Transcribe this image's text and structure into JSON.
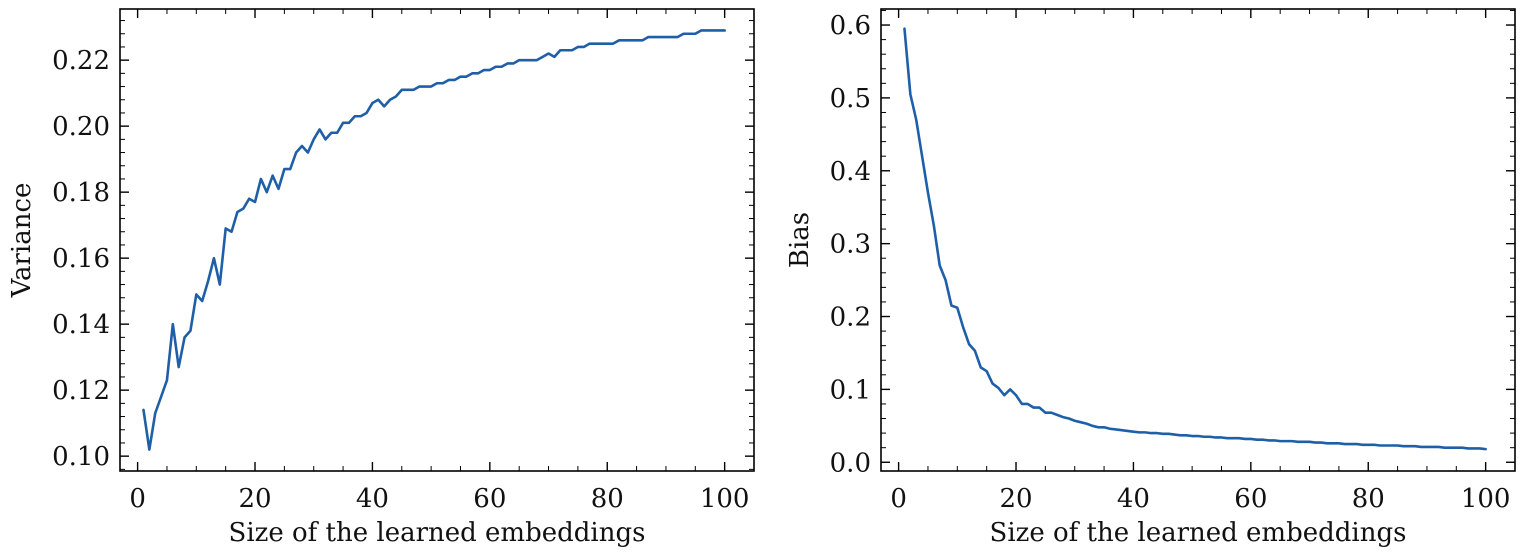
{
  "chart_data": [
    {
      "type": "line",
      "xlabel": "Size of the learned embeddings",
      "ylabel": "Variance",
      "xlim": [
        -3,
        105
      ],
      "ylim": [
        0.0955,
        0.2355
      ],
      "xticks": [
        0,
        20,
        40,
        60,
        80,
        100
      ],
      "xtick_labels": [
        "0",
        "20",
        "40",
        "60",
        "80",
        "100"
      ],
      "yticks": [
        0.1,
        0.12,
        0.14,
        0.16,
        0.18,
        0.2,
        0.22
      ],
      "ytick_labels": [
        "0.10",
        "0.12",
        "0.14",
        "0.16",
        "0.18",
        "0.20",
        "0.22"
      ],
      "grid": false,
      "color": "#1f5fa8",
      "x": [
        1,
        2,
        3,
        4,
        5,
        6,
        7,
        8,
        9,
        10,
        11,
        12,
        13,
        14,
        15,
        16,
        17,
        18,
        19,
        20,
        21,
        22,
        23,
        24,
        25,
        26,
        27,
        28,
        29,
        30,
        31,
        32,
        33,
        34,
        35,
        36,
        37,
        38,
        39,
        40,
        41,
        42,
        43,
        44,
        45,
        46,
        47,
        48,
        49,
        50,
        51,
        52,
        53,
        54,
        55,
        56,
        57,
        58,
        59,
        60,
        61,
        62,
        63,
        64,
        65,
        66,
        67,
        68,
        69,
        70,
        71,
        72,
        73,
        74,
        75,
        76,
        77,
        78,
        79,
        80,
        81,
        82,
        83,
        84,
        85,
        86,
        87,
        88,
        89,
        90,
        91,
        92,
        93,
        94,
        95,
        96,
        97,
        98,
        99,
        100
      ],
      "y": [
        0.114,
        0.102,
        0.113,
        0.118,
        0.123,
        0.14,
        0.127,
        0.136,
        0.138,
        0.149,
        0.147,
        0.153,
        0.16,
        0.152,
        0.169,
        0.168,
        0.174,
        0.175,
        0.178,
        0.177,
        0.184,
        0.18,
        0.185,
        0.181,
        0.187,
        0.187,
        0.192,
        0.194,
        0.192,
        0.196,
        0.199,
        0.196,
        0.198,
        0.198,
        0.201,
        0.201,
        0.203,
        0.203,
        0.204,
        0.207,
        0.208,
        0.206,
        0.208,
        0.209,
        0.211,
        0.211,
        0.211,
        0.212,
        0.212,
        0.212,
        0.213,
        0.213,
        0.214,
        0.214,
        0.215,
        0.215,
        0.216,
        0.216,
        0.217,
        0.217,
        0.218,
        0.218,
        0.219,
        0.219,
        0.22,
        0.22,
        0.22,
        0.22,
        0.221,
        0.222,
        0.221,
        0.223,
        0.223,
        0.223,
        0.224,
        0.224,
        0.225,
        0.225,
        0.225,
        0.225,
        0.225,
        0.226,
        0.226,
        0.226,
        0.226,
        0.226,
        0.227,
        0.227,
        0.227,
        0.227,
        0.227,
        0.227,
        0.228,
        0.228,
        0.228,
        0.229,
        0.229,
        0.229,
        0.229,
        0.229
      ]
    },
    {
      "type": "line",
      "xlabel": "Size of the learned embeddings",
      "ylabel": "Bias",
      "xlim": [
        -3,
        105
      ],
      "ylim": [
        -0.012,
        0.622
      ],
      "xticks": [
        0,
        20,
        40,
        60,
        80,
        100
      ],
      "xtick_labels": [
        "0",
        "20",
        "40",
        "60",
        "80",
        "100"
      ],
      "yticks": [
        0.0,
        0.1,
        0.2,
        0.3,
        0.4,
        0.5,
        0.6
      ],
      "ytick_labels": [
        "0.0",
        "0.1",
        "0.2",
        "0.3",
        "0.4",
        "0.5",
        "0.6"
      ],
      "grid": false,
      "color": "#1f5fa8",
      "x": [
        1,
        2,
        3,
        4,
        5,
        6,
        7,
        8,
        9,
        10,
        11,
        12,
        13,
        14,
        15,
        16,
        17,
        18,
        19,
        20,
        21,
        22,
        23,
        24,
        25,
        26,
        27,
        28,
        29,
        30,
        31,
        32,
        33,
        34,
        35,
        36,
        37,
        38,
        39,
        40,
        41,
        42,
        43,
        44,
        45,
        46,
        47,
        48,
        49,
        50,
        51,
        52,
        53,
        54,
        55,
        56,
        57,
        58,
        59,
        60,
        61,
        62,
        63,
        64,
        65,
        66,
        67,
        68,
        69,
        70,
        71,
        72,
        73,
        74,
        75,
        76,
        77,
        78,
        79,
        80,
        81,
        82,
        83,
        84,
        85,
        86,
        87,
        88,
        89,
        90,
        91,
        92,
        93,
        94,
        95,
        96,
        97,
        98,
        99,
        100
      ],
      "y": [
        0.595,
        0.505,
        0.47,
        0.42,
        0.37,
        0.325,
        0.27,
        0.25,
        0.215,
        0.212,
        0.185,
        0.162,
        0.153,
        0.13,
        0.125,
        0.108,
        0.102,
        0.092,
        0.1,
        0.092,
        0.08,
        0.08,
        0.075,
        0.075,
        0.068,
        0.068,
        0.065,
        0.062,
        0.06,
        0.057,
        0.055,
        0.053,
        0.05,
        0.048,
        0.048,
        0.046,
        0.045,
        0.044,
        0.043,
        0.042,
        0.041,
        0.041,
        0.04,
        0.04,
        0.039,
        0.039,
        0.038,
        0.037,
        0.037,
        0.036,
        0.036,
        0.035,
        0.035,
        0.034,
        0.034,
        0.033,
        0.033,
        0.033,
        0.032,
        0.032,
        0.031,
        0.031,
        0.03,
        0.03,
        0.029,
        0.029,
        0.029,
        0.028,
        0.028,
        0.028,
        0.027,
        0.027,
        0.026,
        0.026,
        0.026,
        0.025,
        0.025,
        0.025,
        0.024,
        0.024,
        0.024,
        0.023,
        0.023,
        0.023,
        0.023,
        0.022,
        0.022,
        0.022,
        0.021,
        0.021,
        0.021,
        0.021,
        0.02,
        0.02,
        0.02,
        0.02,
        0.019,
        0.019,
        0.019,
        0.018
      ]
    }
  ]
}
